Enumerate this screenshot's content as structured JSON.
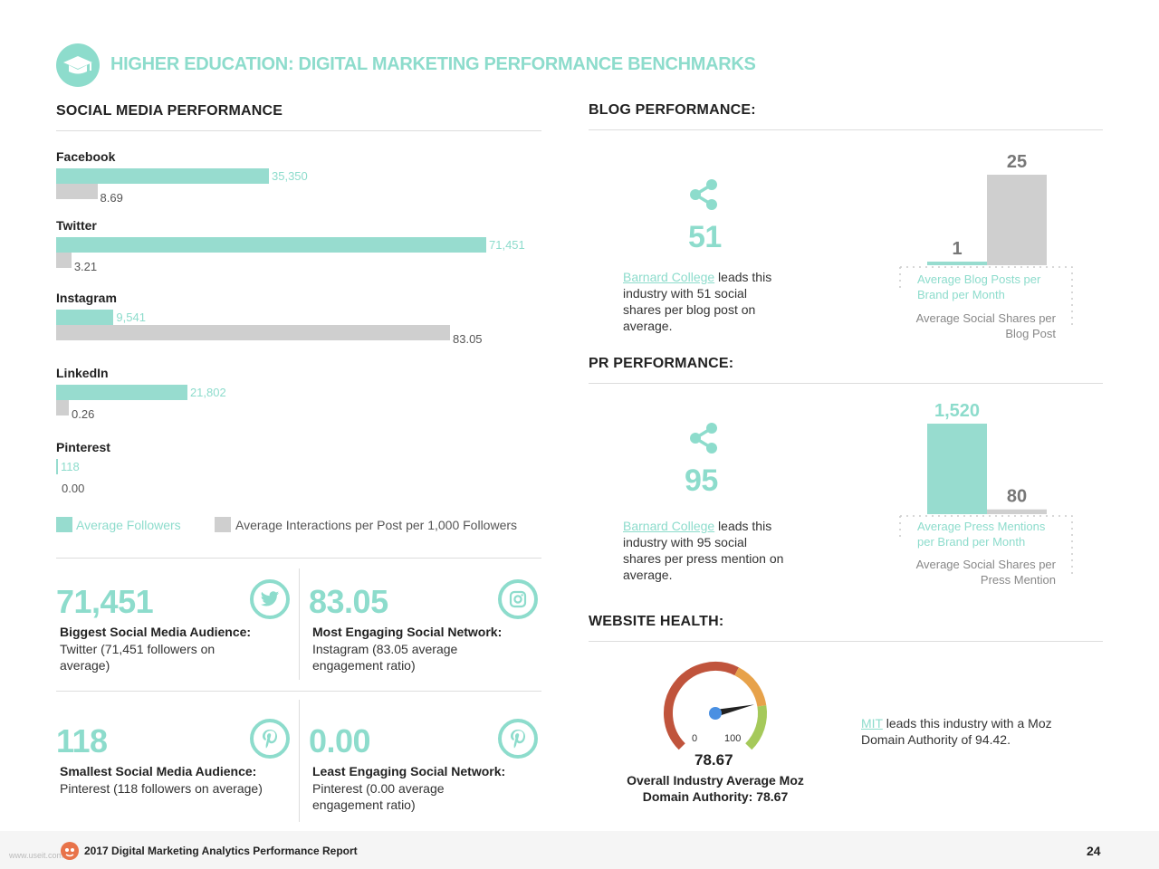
{
  "header": {
    "title": "HIGHER EDUCATION: DIGITAL MARKETING PERFORMANCE BENCHMARKS"
  },
  "social": {
    "title": "SOCIAL MEDIA PERFORMANCE",
    "legend_followers": "Average Followers",
    "legend_interactions": "Average Interactions per Post per 1,000 Followers"
  },
  "chart_data": {
    "type": "bar",
    "categories": [
      "Facebook",
      "Twitter",
      "Instagram",
      "LinkedIn",
      "Pinterest"
    ],
    "series": [
      {
        "name": "Average Followers",
        "values": [
          35350,
          71451,
          9541,
          21802,
          118
        ],
        "labels": [
          "35,350",
          "71,451",
          "9,541",
          "21,802",
          "118"
        ],
        "color": "#97dccf"
      },
      {
        "name": "Average Interactions per Post per 1,000 Followers",
        "values": [
          8.69,
          3.21,
          83.05,
          0.26,
          0.0
        ],
        "labels": [
          "8.69",
          "3.21",
          "83.05",
          "0.26",
          "0.00"
        ],
        "color": "#cfcfcf"
      }
    ]
  },
  "stats": [
    {
      "value": "71,451",
      "title": "Biggest Social Media Audience:",
      "desc": "Twitter (71,451 followers on average)",
      "icon": "twitter-icon"
    },
    {
      "value": "83.05",
      "title": "Most Engaging Social Network:",
      "desc": "Instagram (83.05 average engagement ratio)",
      "icon": "instagram-icon"
    },
    {
      "value": "118",
      "title": "Smallest Social Media Audience:",
      "desc": "Pinterest (118 followers on average)",
      "icon": "pinterest-icon"
    },
    {
      "value": "0.00",
      "title": "Least Engaging Social Network:",
      "desc": "Pinterest (0.00 average engagement ratio)",
      "icon": "pinterest-icon"
    }
  ],
  "blog": {
    "title": "BLOG PERFORMANCE:",
    "big_value": "51",
    "leader": "Barnard College",
    "leader_rest": " leads this industry with 51 social shares per blog post on average.",
    "bar1_value": 1,
    "bar1_label": "1",
    "bar2_value": 25,
    "bar2_label": "25",
    "label1": "Average Blog Posts per Brand per Month",
    "label2": "Average Social Shares per Blog Post"
  },
  "pr": {
    "title": "PR PERFORMANCE:",
    "big_value": "95",
    "leader": "Barnard College",
    "leader_rest": " leads this industry with 95 social shares per press mention on average.",
    "bar1_value": 1520,
    "bar1_label": "1,520",
    "bar2_value": 80,
    "bar2_label": "80",
    "label1": "Average Press Mentions per Brand per Month",
    "label2": "Average Social Shares per Press Mention"
  },
  "website": {
    "title": "WEBSITE HEALTH:",
    "gauge_min": "0",
    "gauge_max": "100",
    "gauge_value": 78.67,
    "gauge_value_label": "78.67",
    "caption_line1": "Overall Industry Average Moz",
    "caption_line2": "Domain Authority: 78.67",
    "leader": "MIT",
    "leader_rest": " leads this industry with a Moz Domain Authority of 94.42."
  },
  "footer": {
    "report": "2017 Digital Marketing Analytics Performance Report",
    "page": "24",
    "watermark": "www.useit.com.cn"
  },
  "colors": {
    "accent": "#8ddccc",
    "grey_bar": "#cfcfcf",
    "gauge_red": "#c0543c",
    "gauge_orange": "#e7a24a",
    "gauge_green": "#a5c95a",
    "needle": "#4a90e2"
  }
}
